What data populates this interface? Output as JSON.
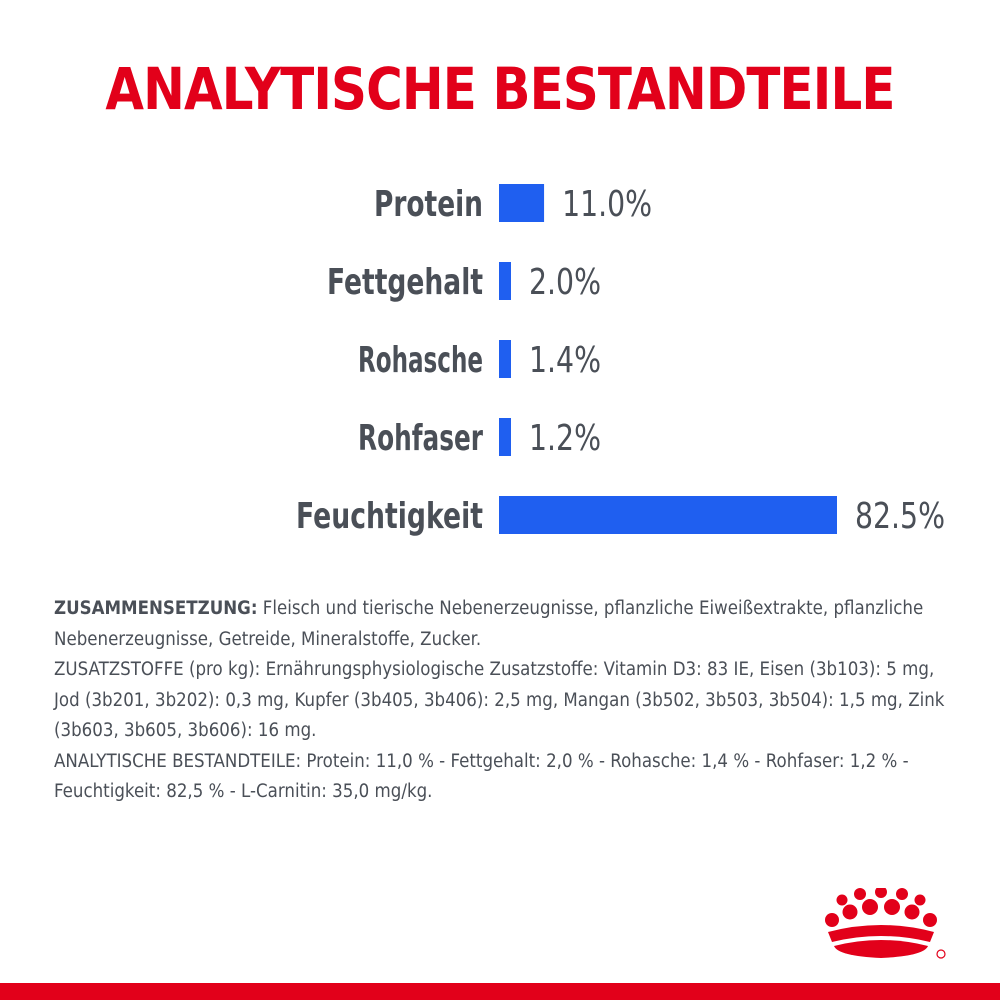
{
  "title": "ANALYTISCHE BESTANDTEILE",
  "colors": {
    "accent": "#e2001a",
    "bar": "#1f5ff0",
    "text": "#4a4f57"
  },
  "chart_data": {
    "type": "bar",
    "orientation": "horizontal",
    "categories": [
      "Protein",
      "Fettgehalt",
      "Rohasche",
      "Rohfaser",
      "Feuchtigkeit"
    ],
    "values": [
      11.0,
      2.0,
      1.4,
      1.2,
      82.5
    ],
    "value_labels": [
      "11.0%",
      "2.0%",
      "1.4%",
      "1.2%",
      "82.5%"
    ],
    "grid": false
  },
  "composition": {
    "p1_label": "ZUSAMMENSETZUNG:",
    "p1_text": " Fleisch und tierische Nebenerzeugnisse, pflanzliche Eiweißextrakte, pflanzliche Nebenerzeugnisse, Getreide, Mineralstoffe, Zucker.",
    "p2_text": "ZUSATZSTOFFE (pro kg): Ernährungsphysiologische Zusatzstoffe: Vitamin D3: 83 IE, Eisen (3b103): 5 mg, Jod (3b201, 3b202): 0,3 mg, Kupfer (3b405, 3b406): 2,5 mg, Mangan (3b502, 3b503, 3b504): 1,5 mg, Zink (3b603, 3b605, 3b606): 16 mg.",
    "p3_text": "ANALYTISCHE BESTANDTEILE: Protein: 11,0 % - Fettgehalt: 2,0 % - Rohasche: 1,4 % - Rohfaser: 1,2 % - Feuchtigkeit: 82,5 % - L-Carnitin: 35,0 mg/kg."
  },
  "logo": {
    "icon": "royal-canin-crown-icon"
  }
}
